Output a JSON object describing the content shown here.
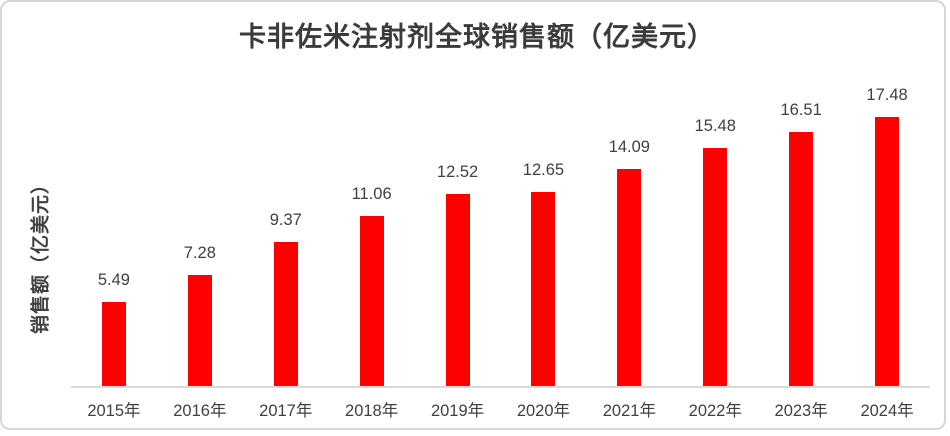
{
  "title": "卡非佐米注射剂全球销售额（亿美元）",
  "y_axis_label": "销售额（亿美元）",
  "colors": {
    "bar": "#ff0000",
    "text": "#404040",
    "title_text": "#3b3b3b",
    "axis_line": "#d9d9d9",
    "border": "#d6d6d6",
    "background": "#ffffff"
  },
  "chart_data": {
    "type": "bar",
    "title": "卡非佐米注射剂全球销售额（亿美元）",
    "categories": [
      "2015年",
      "2016年",
      "2017年",
      "2018年",
      "2019年",
      "2020年",
      "2021年",
      "2022年",
      "2023年",
      "2024年"
    ],
    "values": [
      5.49,
      7.28,
      9.37,
      11.06,
      12.52,
      12.65,
      14.09,
      15.48,
      16.51,
      17.48
    ],
    "xlabel": "",
    "ylabel": "销售额（亿美元）",
    "ylim": [
      0,
      18
    ],
    "grid": false,
    "legend": "none",
    "data_labels": true,
    "bar_color": "#ff0000"
  }
}
